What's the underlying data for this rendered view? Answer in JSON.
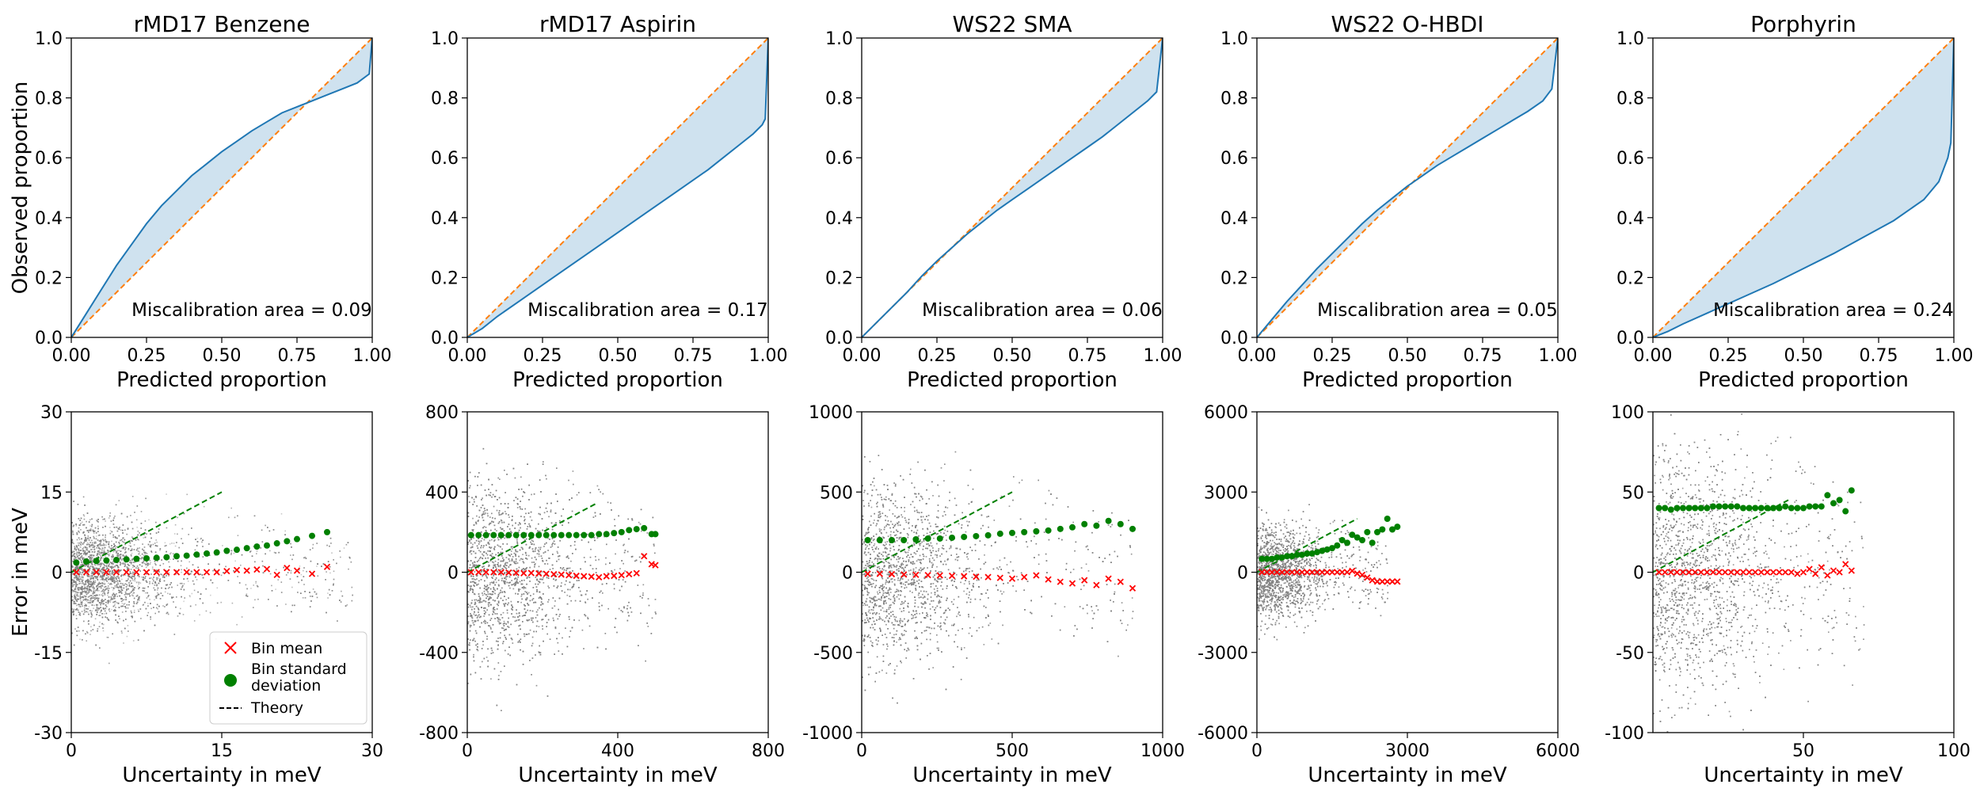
{
  "labels": {
    "calib_ylabel": "Observed proportion",
    "calib_xlabel": "Predicted proportion",
    "err_ylabel": "Error in meV",
    "err_xlabel": "Uncertainty in meV",
    "mis_prefix": "Miscalibration area = "
  },
  "colors": {
    "curve": "#1f77b4",
    "fill": "#cfe2ef",
    "ideal": "#ff7f0e",
    "bin_mean": "#ff0000",
    "bin_std": "#008000",
    "theory": "#008000",
    "scatter": "#808080"
  },
  "legend": {
    "bin_mean": "Bin mean",
    "bin_std_line1": "Bin standard",
    "bin_std_line2": "deviation",
    "theory": "Theory"
  },
  "chart_data": [
    {
      "type": "line",
      "panel": "calibration",
      "title": "rMD17 Benzene",
      "xlabel": "Predicted proportion",
      "ylabel": "Observed proportion",
      "xlim": [
        0,
        1
      ],
      "ylim": [
        0,
        1
      ],
      "xticks": [
        "0.00",
        "0.25",
        "0.50",
        "0.75",
        "1.00"
      ],
      "yticks": [
        "0.0",
        "0.2",
        "0.4",
        "0.6",
        "0.8",
        "1.0"
      ],
      "miscalibration_area": "0.09",
      "curve_x": [
        0,
        0.05,
        0.1,
        0.15,
        0.2,
        0.25,
        0.3,
        0.35,
        0.4,
        0.45,
        0.5,
        0.55,
        0.6,
        0.65,
        0.7,
        0.75,
        0.8,
        0.85,
        0.9,
        0.95,
        0.99,
        1.0
      ],
      "curve_y": [
        0,
        0.08,
        0.16,
        0.24,
        0.31,
        0.38,
        0.44,
        0.49,
        0.54,
        0.58,
        0.62,
        0.655,
        0.69,
        0.72,
        0.75,
        0.77,
        0.79,
        0.81,
        0.83,
        0.85,
        0.88,
        1.0
      ]
    },
    {
      "type": "line",
      "panel": "calibration",
      "title": "rMD17 Aspirin",
      "xlabel": "Predicted proportion",
      "xlim": [
        0,
        1
      ],
      "ylim": [
        0,
        1
      ],
      "xticks": [
        "0.00",
        "0.25",
        "0.50",
        "0.75",
        "1.00"
      ],
      "yticks": [
        "0.0",
        "0.2",
        "0.4",
        "0.6",
        "0.8",
        "1.0"
      ],
      "miscalibration_area": "0.17",
      "curve_x": [
        0,
        0.05,
        0.1,
        0.2,
        0.3,
        0.4,
        0.5,
        0.6,
        0.7,
        0.8,
        0.85,
        0.9,
        0.95,
        0.98,
        0.99,
        1.0
      ],
      "curve_y": [
        0,
        0.03,
        0.07,
        0.14,
        0.21,
        0.28,
        0.35,
        0.42,
        0.49,
        0.56,
        0.6,
        0.64,
        0.68,
        0.71,
        0.73,
        1.0
      ]
    },
    {
      "type": "line",
      "panel": "calibration",
      "title": "WS22 SMA",
      "xlabel": "Predicted proportion",
      "xlim": [
        0,
        1
      ],
      "ylim": [
        0,
        1
      ],
      "xticks": [
        "0.00",
        "0.25",
        "0.50",
        "0.75",
        "1.00"
      ],
      "yticks": [
        "0.0",
        "0.2",
        "0.4",
        "0.6",
        "0.8",
        "1.0"
      ],
      "miscalibration_area": "0.06",
      "curve_x": [
        0,
        0.05,
        0.1,
        0.15,
        0.2,
        0.25,
        0.3,
        0.35,
        0.4,
        0.45,
        0.5,
        0.55,
        0.6,
        0.65,
        0.7,
        0.75,
        0.8,
        0.85,
        0.9,
        0.95,
        0.98,
        1.0
      ],
      "curve_y": [
        0,
        0.05,
        0.1,
        0.15,
        0.205,
        0.255,
        0.3,
        0.345,
        0.385,
        0.425,
        0.46,
        0.495,
        0.53,
        0.565,
        0.6,
        0.635,
        0.67,
        0.71,
        0.75,
        0.79,
        0.82,
        1.0
      ]
    },
    {
      "type": "line",
      "panel": "calibration",
      "title": "WS22 O-HBDI",
      "xlabel": "Predicted proportion",
      "xlim": [
        0,
        1
      ],
      "ylim": [
        0,
        1
      ],
      "xticks": [
        "0.00",
        "0.25",
        "0.50",
        "0.75",
        "1.00"
      ],
      "yticks": [
        "0.0",
        "0.2",
        "0.4",
        "0.6",
        "0.8",
        "1.0"
      ],
      "miscalibration_area": "0.05",
      "curve_x": [
        0,
        0.05,
        0.1,
        0.15,
        0.2,
        0.25,
        0.3,
        0.35,
        0.4,
        0.45,
        0.5,
        0.55,
        0.6,
        0.65,
        0.7,
        0.75,
        0.8,
        0.85,
        0.9,
        0.95,
        0.98,
        1.0
      ],
      "curve_y": [
        0,
        0.06,
        0.12,
        0.175,
        0.23,
        0.28,
        0.33,
        0.38,
        0.425,
        0.465,
        0.505,
        0.54,
        0.575,
        0.605,
        0.635,
        0.665,
        0.695,
        0.725,
        0.755,
        0.79,
        0.83,
        1.0
      ]
    },
    {
      "type": "line",
      "panel": "calibration",
      "title": "Porphyrin",
      "xlabel": "Predicted proportion",
      "xlim": [
        0,
        1
      ],
      "ylim": [
        0,
        1
      ],
      "xticks": [
        "0.00",
        "0.25",
        "0.50",
        "0.75",
        "1.00"
      ],
      "yticks": [
        "0.0",
        "0.2",
        "0.4",
        "0.6",
        "0.8",
        "1.0"
      ],
      "miscalibration_area": "0.24",
      "curve_x": [
        0,
        0.05,
        0.1,
        0.2,
        0.3,
        0.4,
        0.5,
        0.6,
        0.7,
        0.8,
        0.9,
        0.95,
        0.98,
        0.99,
        1.0
      ],
      "curve_y": [
        0,
        0.02,
        0.045,
        0.09,
        0.135,
        0.18,
        0.23,
        0.28,
        0.335,
        0.39,
        0.46,
        0.52,
        0.6,
        0.65,
        1.0
      ]
    },
    {
      "type": "scatter",
      "panel": "error",
      "title": "rMD17 Benzene",
      "xlabel": "Uncertainty in meV",
      "ylabel": "Error in meV",
      "xlim": [
        0,
        30
      ],
      "ylim": [
        -30,
        30
      ],
      "xticks": [
        0,
        15,
        30
      ],
      "yticks": [
        -30,
        -15,
        0,
        15,
        30
      ],
      "xtick_labels": [
        "0",
        "15",
        "30"
      ],
      "ytick_labels": [
        "-30",
        "-15",
        "0",
        "15",
        "30"
      ],
      "cloud": {
        "x_core_max": 10,
        "x_max": 28,
        "y_core": 4.5,
        "y_spread": 12
      },
      "bin_mean": {
        "x": [
          0.5,
          1.5,
          2.5,
          3.5,
          4.5,
          5.5,
          6.5,
          7.5,
          8.5,
          9.5,
          10.5,
          11.5,
          12.5,
          13.5,
          14.5,
          15.5,
          16.5,
          17.5,
          18.5,
          19.5,
          20.5,
          21.5,
          22.5,
          24,
          25.5
        ],
        "y": [
          0,
          0,
          0,
          0,
          0,
          0,
          0,
          0,
          0,
          0,
          0,
          0,
          0,
          0,
          0,
          0.2,
          0.4,
          0.3,
          0.5,
          0.6,
          -0.5,
          0.8,
          0.3,
          -0.3,
          1.0
        ]
      },
      "bin_std": {
        "x": [
          0.5,
          1.5,
          2.5,
          3.5,
          4.5,
          5.5,
          6.5,
          7.5,
          8.5,
          9.5,
          10.5,
          11.5,
          12.5,
          13.5,
          14.5,
          15.5,
          16.5,
          17.5,
          18.5,
          19.5,
          20.5,
          21.5,
          22.5,
          24,
          25.5
        ],
        "y": [
          1.8,
          2,
          2.1,
          2.2,
          2.3,
          2.4,
          2.5,
          2.6,
          2.7,
          2.8,
          3,
          3.1,
          3.3,
          3.5,
          3.7,
          4,
          4.2,
          4.5,
          4.8,
          5,
          5.4,
          5.8,
          6.2,
          6.8,
          7.5
        ]
      },
      "theory": {
        "x": [
          0,
          15
        ],
        "y": [
          0,
          15
        ]
      }
    },
    {
      "type": "scatter",
      "panel": "error",
      "title": "rMD17 Aspirin",
      "xlabel": "Uncertainty in meV",
      "xlim": [
        0,
        800
      ],
      "ylim": [
        -800,
        800
      ],
      "xticks": [
        0,
        400,
        800
      ],
      "yticks": [
        -800,
        -400,
        0,
        400,
        800
      ],
      "xtick_labels": [
        "0",
        "400",
        "800"
      ],
      "ytick_labels": [
        "-800",
        "-400",
        "0",
        "400",
        "800"
      ],
      "cloud": {
        "x_core_max": 320,
        "x_max": 500,
        "y_core": 220,
        "y_spread": 450
      },
      "bin_mean": {
        "x": [
          10,
          30,
          50,
          70,
          90,
          110,
          130,
          150,
          170,
          190,
          210,
          230,
          250,
          270,
          290,
          310,
          330,
          350,
          370,
          390,
          410,
          430,
          450,
          470,
          490,
          500
        ],
        "y": [
          0,
          0,
          0,
          0,
          0,
          -2,
          -3,
          -5,
          -4,
          -6,
          -8,
          -10,
          -12,
          -15,
          -18,
          -20,
          -22,
          -25,
          -20,
          -18,
          -15,
          -10,
          -5,
          80,
          40,
          35
        ]
      },
      "bin_std": {
        "x": [
          10,
          30,
          50,
          70,
          90,
          110,
          130,
          150,
          170,
          190,
          210,
          230,
          250,
          270,
          290,
          310,
          330,
          350,
          370,
          390,
          410,
          430,
          450,
          470,
          490,
          500
        ],
        "y": [
          185,
          185,
          185,
          185,
          185,
          185,
          185,
          185,
          185,
          185,
          185,
          185,
          185,
          185,
          185,
          185,
          185,
          190,
          190,
          195,
          200,
          210,
          215,
          220,
          190,
          190
        ]
      },
      "theory": {
        "x": [
          0,
          340
        ],
        "y": [
          0,
          340
        ]
      }
    },
    {
      "type": "scatter",
      "panel": "error",
      "title": "WS22 SMA",
      "xlabel": "Uncertainty in meV",
      "xlim": [
        0,
        1000
      ],
      "ylim": [
        -1000,
        1000
      ],
      "xticks": [
        0,
        500,
        1000
      ],
      "yticks": [
        -1000,
        -500,
        0,
        500,
        1000
      ],
      "xtick_labels": [
        "0",
        "500",
        "1000"
      ],
      "ytick_labels": [
        "-1000",
        "-500",
        "0",
        "500",
        "1000"
      ],
      "cloud": {
        "x_core_max": 420,
        "x_max": 900,
        "y_core": 260,
        "y_spread": 650
      },
      "bin_mean": {
        "x": [
          20,
          60,
          100,
          140,
          180,
          220,
          260,
          300,
          340,
          380,
          420,
          460,
          500,
          540,
          580,
          620,
          660,
          700,
          740,
          780,
          820,
          860,
          900
        ],
        "y": [
          -10,
          -10,
          -12,
          -14,
          -16,
          -18,
          -20,
          -22,
          -25,
          -28,
          -30,
          -35,
          -40,
          -30,
          -20,
          -45,
          -60,
          -70,
          -50,
          -80,
          -40,
          -60,
          -100
        ]
      },
      "bin_std": {
        "x": [
          20,
          60,
          100,
          140,
          180,
          220,
          260,
          300,
          340,
          380,
          420,
          460,
          500,
          540,
          580,
          620,
          660,
          700,
          740,
          780,
          820,
          860,
          900
        ],
        "y": [
          200,
          200,
          200,
          200,
          205,
          210,
          210,
          215,
          220,
          225,
          230,
          240,
          245,
          250,
          255,
          260,
          270,
          280,
          300,
          290,
          320,
          300,
          270
        ]
      },
      "theory": {
        "x": [
          0,
          500
        ],
        "y": [
          0,
          500
        ]
      }
    },
    {
      "type": "scatter",
      "panel": "error",
      "title": "WS22 O-HBDI",
      "xlabel": "Uncertainty in meV",
      "xlim": [
        0,
        6000
      ],
      "ylim": [
        -6000,
        6000
      ],
      "xticks": [
        0,
        3000,
        6000
      ],
      "yticks": [
        -6000,
        -3000,
        0,
        3000,
        6000
      ],
      "xtick_labels": [
        "0",
        "3000",
        "6000"
      ],
      "ytick_labels": [
        "-6000",
        "-3000",
        "0",
        "3000",
        "6000"
      ],
      "cloud": {
        "x_core_max": 1400,
        "x_max": 2600,
        "y_core": 800,
        "y_spread": 2200
      },
      "bin_mean": {
        "x": [
          100,
          200,
          300,
          400,
          500,
          600,
          700,
          800,
          900,
          1000,
          1100,
          1200,
          1300,
          1400,
          1500,
          1600,
          1700,
          1800,
          1900,
          2000,
          2100,
          2200,
          2300,
          2400,
          2500,
          2600,
          2700,
          2800
        ],
        "y": [
          0,
          0,
          0,
          0,
          0,
          0,
          0,
          0,
          0,
          0,
          0,
          0,
          0,
          0,
          0,
          0,
          0,
          0,
          50,
          -50,
          -100,
          -200,
          -300,
          -350,
          -350,
          -350,
          -350,
          -350
        ]
      },
      "bin_std": {
        "x": [
          100,
          200,
          300,
          400,
          500,
          600,
          700,
          800,
          900,
          1000,
          1100,
          1200,
          1300,
          1400,
          1500,
          1600,
          1700,
          1800,
          1900,
          2000,
          2100,
          2200,
          2300,
          2400,
          2500,
          2600,
          2700,
          2800
        ],
        "y": [
          500,
          500,
          500,
          550,
          550,
          600,
          600,
          650,
          650,
          700,
          700,
          750,
          800,
          850,
          900,
          1000,
          1200,
          1100,
          1400,
          1300,
          1200,
          1500,
          1100,
          1500,
          1600,
          2000,
          1600,
          1700
        ]
      },
      "theory": {
        "x": [
          0,
          2000
        ],
        "y": [
          0,
          2000
        ]
      }
    },
    {
      "type": "scatter",
      "panel": "error",
      "title": "Porphyrin",
      "xlabel": "Uncertainty in meV",
      "xlim": [
        0,
        100
      ],
      "ylim": [
        -100,
        100
      ],
      "xticks": [
        50,
        100
      ],
      "yticks": [
        -100,
        -50,
        0,
        50,
        100
      ],
      "xtick_labels": [
        "50",
        "100"
      ],
      "ytick_labels": [
        "-100",
        "-50",
        "0",
        "50",
        "100"
      ],
      "cloud": {
        "x_core_max": 45,
        "x_max": 70,
        "y_core": 35,
        "y_spread": 95
      },
      "bin_mean": {
        "x": [
          2,
          4,
          6,
          8,
          10,
          12,
          14,
          16,
          18,
          20,
          22,
          24,
          26,
          28,
          30,
          32,
          34,
          36,
          38,
          40,
          42,
          44,
          46,
          48,
          50,
          52,
          54,
          56,
          58,
          60,
          62,
          64,
          66
        ],
        "y": [
          0,
          0,
          0,
          0,
          0,
          0,
          0,
          0,
          0,
          0,
          0,
          0,
          0,
          0,
          0,
          0,
          0,
          0,
          0,
          0,
          0,
          0,
          0,
          -1,
          0,
          2,
          -1,
          3,
          -2,
          1,
          0,
          5,
          1
        ]
      },
      "bin_std": {
        "x": [
          2,
          4,
          6,
          8,
          10,
          12,
          14,
          16,
          18,
          20,
          22,
          24,
          26,
          28,
          30,
          32,
          34,
          36,
          38,
          40,
          42,
          44,
          46,
          48,
          50,
          52,
          54,
          56,
          58,
          60,
          62,
          64,
          66
        ],
        "y": [
          40,
          40,
          39,
          40,
          40,
          40,
          40,
          40,
          40,
          41,
          41,
          41,
          41,
          41,
          40,
          40,
          40,
          40,
          40,
          40,
          40,
          41,
          40,
          40,
          40,
          41,
          41,
          41,
          48,
          43,
          45,
          38,
          51
        ]
      },
      "theory": {
        "x": [
          0,
          45
        ],
        "y": [
          0,
          45
        ]
      }
    }
  ]
}
